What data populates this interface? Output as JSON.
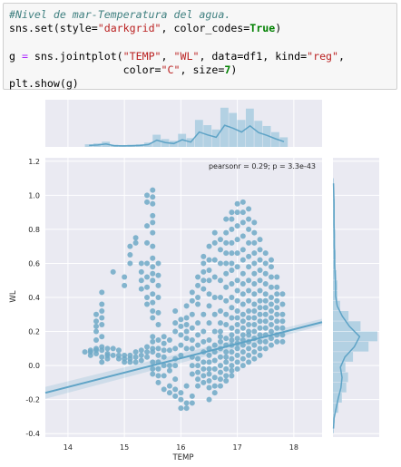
{
  "code_cell": {
    "lines": [
      [
        {
          "t": "#Nivel de mar-Temperatura del agua.",
          "c": "cm"
        }
      ],
      [
        {
          "t": "sns.set(style=",
          "c": ""
        },
        {
          "t": "\"darkgrid\"",
          "c": "st"
        },
        {
          "t": ", color_codes=",
          "c": ""
        },
        {
          "t": "True",
          "c": "kw"
        },
        {
          "t": ")",
          "c": ""
        }
      ],
      [
        {
          "t": "",
          "c": ""
        }
      ],
      [
        {
          "t": "g ",
          "c": ""
        },
        {
          "t": "=",
          "c": "op"
        },
        {
          "t": " sns.jointplot(",
          "c": ""
        },
        {
          "t": "\"TEMP\"",
          "c": "st"
        },
        {
          "t": ", ",
          "c": ""
        },
        {
          "t": "\"WL\"",
          "c": "st"
        },
        {
          "t": ", data=df1, kind=",
          "c": ""
        },
        {
          "t": "\"reg\"",
          "c": "st"
        },
        {
          "t": ",",
          "c": ""
        }
      ],
      [
        {
          "t": "                  color=",
          "c": ""
        },
        {
          "t": "\"C\"",
          "c": "st"
        },
        {
          "t": ", size=",
          "c": ""
        },
        {
          "t": "7",
          "c": "kw"
        },
        {
          "t": ")",
          "c": ""
        }
      ],
      [
        {
          "t": "plt.show(g)",
          "c": ""
        }
      ]
    ]
  },
  "chart_data": {
    "type": "scatter",
    "xlabel": "TEMP",
    "ylabel": "WL",
    "annotation": "pearsonr = 0.29; p = 3.3e-43",
    "xlim": [
      13.6,
      18.5
    ],
    "ylim": [
      -0.42,
      1.22
    ],
    "xticks": [
      14,
      15,
      16,
      17,
      18
    ],
    "yticks": [
      -0.4,
      -0.2,
      0.0,
      0.2,
      0.4,
      0.6,
      0.8,
      1.0,
      1.2
    ],
    "regression": {
      "x": [
        13.6,
        18.5
      ],
      "y": [
        -0.16,
        0.255
      ]
    },
    "columns": [
      {
        "x": 14.3,
        "y": [
          0.08
        ]
      },
      {
        "x": 14.4,
        "y": [
          0.06,
          0.08,
          0.09
        ]
      },
      {
        "x": 14.5,
        "y": [
          0.07,
          0.09,
          0.1,
          0.15,
          0.2,
          0.23,
          0.26,
          0.3
        ]
      },
      {
        "x": 14.6,
        "y": [
          0.02,
          0.05,
          0.09,
          0.11,
          0.17,
          0.24,
          0.28,
          0.32,
          0.36,
          0.43
        ]
      },
      {
        "x": 14.7,
        "y": [
          0.04,
          0.06,
          0.07,
          0.1
        ]
      },
      {
        "x": 14.8,
        "y": [
          0.06,
          0.1,
          0.55
        ]
      },
      {
        "x": 14.9,
        "y": [
          0.04,
          0.06,
          0.09
        ]
      },
      {
        "x": 15.0,
        "y": [
          0.02,
          0.04,
          0.06,
          0.47,
          0.52
        ]
      },
      {
        "x": 15.1,
        "y": [
          0.02,
          0.04,
          0.06,
          0.6,
          0.65,
          0.7
        ]
      },
      {
        "x": 15.2,
        "y": [
          0.02,
          0.05,
          0.08,
          0.72,
          0.75
        ]
      },
      {
        "x": 15.3,
        "y": [
          0.03,
          0.06,
          0.09,
          0.45,
          0.5,
          0.55,
          0.6
        ]
      },
      {
        "x": 15.4,
        "y": [
          0.05,
          0.08,
          0.11,
          0.36,
          0.4,
          0.46,
          0.52,
          0.6,
          0.72,
          0.82,
          0.96,
          1.0
        ]
      },
      {
        "x": 15.5,
        "y": [
          -0.05,
          -0.02,
          0.02,
          0.08,
          0.1,
          0.14,
          0.17,
          0.28,
          0.32,
          0.37,
          0.42,
          0.5,
          0.54,
          0.58,
          0.63,
          0.7,
          0.78,
          0.84,
          0.88,
          0.95,
          0.99,
          1.03
        ]
      },
      {
        "x": 15.6,
        "y": [
          -0.1,
          -0.06,
          -0.02,
          0.02,
          0.06,
          0.1,
          0.15,
          0.24,
          0.31,
          0.4,
          0.47,
          0.53,
          0.6
        ]
      },
      {
        "x": 15.7,
        "y": [
          -0.14,
          -0.06,
          0.0,
          0.05,
          0.09,
          0.13,
          0.17
        ]
      },
      {
        "x": 15.8,
        "y": [
          -0.12,
          -0.16,
          -0.03,
          0.0,
          0.09,
          0.15
        ]
      },
      {
        "x": 15.9,
        "y": [
          -0.18,
          -0.14,
          -0.08,
          0.0,
          0.04,
          0.1,
          0.2,
          0.25,
          0.32
        ]
      },
      {
        "x": 16.0,
        "y": [
          -0.25,
          -0.2,
          -0.16,
          0.06,
          0.12,
          0.18,
          0.23,
          0.27
        ]
      },
      {
        "x": 16.1,
        "y": [
          -0.25,
          -0.22,
          -0.12,
          0.1,
          0.16,
          0.2,
          0.24,
          0.28,
          0.35
        ]
      },
      {
        "x": 16.2,
        "y": [
          -0.22,
          -0.18,
          -0.05,
          0.0,
          0.05,
          0.1,
          0.15,
          0.22,
          0.3,
          0.38,
          0.43
        ]
      },
      {
        "x": 16.3,
        "y": [
          -0.12,
          -0.08,
          -0.04,
          0.0,
          0.04,
          0.12,
          0.18,
          0.25,
          0.36,
          0.4,
          0.47,
          0.52
        ]
      },
      {
        "x": 16.4,
        "y": [
          -0.1,
          -0.06,
          -0.02,
          0.02,
          0.08,
          0.14,
          0.2,
          0.3,
          0.45,
          0.5,
          0.55,
          0.6,
          0.64
        ]
      },
      {
        "x": 16.5,
        "y": [
          -0.2,
          -0.13,
          -0.09,
          -0.05,
          -0.02,
          0.02,
          0.06,
          0.1,
          0.15,
          0.25,
          0.35,
          0.42,
          0.5,
          0.56,
          0.62,
          0.7
        ]
      },
      {
        "x": 16.6,
        "y": [
          -0.16,
          -0.12,
          -0.07,
          -0.02,
          0.03,
          0.08,
          0.12,
          0.2,
          0.3,
          0.4,
          0.52,
          0.62,
          0.72,
          0.78
        ]
      },
      {
        "x": 16.7,
        "y": [
          -0.12,
          -0.08,
          -0.04,
          0.0,
          0.05,
          0.1,
          0.14,
          0.17,
          0.2,
          0.25,
          0.32,
          0.4,
          0.5,
          0.6,
          0.68,
          0.74
        ]
      },
      {
        "x": 16.8,
        "y": [
          -0.09,
          -0.06,
          -0.02,
          0.02,
          0.05,
          0.08,
          0.12,
          0.16,
          0.24,
          0.3,
          0.38,
          0.46,
          0.54,
          0.6,
          0.66,
          0.72,
          0.78,
          0.86
        ]
      },
      {
        "x": 16.9,
        "y": [
          -0.06,
          -0.03,
          0.0,
          0.04,
          0.08,
          0.12,
          0.15,
          0.18,
          0.22,
          0.28,
          0.34,
          0.4,
          0.48,
          0.56,
          0.6,
          0.66,
          0.72,
          0.8,
          0.86,
          0.9
        ]
      },
      {
        "x": 17.0,
        "y": [
          -0.02,
          0.02,
          0.06,
          0.1,
          0.13,
          0.16,
          0.2,
          0.24,
          0.28,
          0.32,
          0.38,
          0.44,
          0.5,
          0.58,
          0.66,
          0.74,
          0.82,
          0.9,
          0.95
        ]
      },
      {
        "x": 17.1,
        "y": [
          0.0,
          0.04,
          0.08,
          0.12,
          0.15,
          0.18,
          0.22,
          0.26,
          0.3,
          0.36,
          0.42,
          0.48,
          0.54,
          0.62,
          0.68,
          0.76,
          0.84,
          0.9,
          0.96
        ]
      },
      {
        "x": 17.2,
        "y": [
          0.02,
          0.06,
          0.1,
          0.14,
          0.18,
          0.2,
          0.24,
          0.28,
          0.32,
          0.38,
          0.44,
          0.5,
          0.58,
          0.64,
          0.72,
          0.8,
          0.86,
          0.92
        ]
      },
      {
        "x": 17.3,
        "y": [
          0.04,
          0.08,
          0.12,
          0.16,
          0.2,
          0.24,
          0.28,
          0.32,
          0.36,
          0.42,
          0.48,
          0.54,
          0.6,
          0.66,
          0.72,
          0.78,
          0.84
        ]
      },
      {
        "x": 17.4,
        "y": [
          0.06,
          0.1,
          0.14,
          0.18,
          0.22,
          0.26,
          0.3,
          0.34,
          0.38,
          0.44,
          0.5,
          0.56,
          0.62,
          0.68,
          0.74
        ]
      },
      {
        "x": 17.5,
        "y": [
          0.1,
          0.14,
          0.18,
          0.22,
          0.26,
          0.3,
          0.34,
          0.38,
          0.42,
          0.48,
          0.54,
          0.6,
          0.66
        ]
      },
      {
        "x": 17.6,
        "y": [
          0.12,
          0.16,
          0.2,
          0.24,
          0.28,
          0.32,
          0.36,
          0.4,
          0.46,
          0.52,
          0.58,
          0.62
        ]
      },
      {
        "x": 17.7,
        "y": [
          0.14,
          0.18,
          0.22,
          0.26,
          0.3,
          0.34,
          0.38,
          0.42,
          0.46,
          0.52
        ]
      },
      {
        "x": 17.8,
        "y": [
          0.14,
          0.18,
          0.22,
          0.26,
          0.3,
          0.36,
          0.42
        ]
      }
    ],
    "marginal_x_hist": {
      "bins": [
        14.3,
        14.45,
        14.6,
        14.75,
        14.9,
        15.05,
        15.2,
        15.35,
        15.5,
        15.65,
        15.8,
        15.95,
        16.1,
        16.25,
        16.4,
        16.55,
        16.7,
        16.85,
        17.0,
        17.15,
        17.3,
        17.45,
        17.6,
        17.75
      ],
      "heights": [
        0.06,
        0.08,
        0.12,
        0.05,
        0.04,
        0.05,
        0.06,
        0.1,
        0.28,
        0.18,
        0.14,
        0.3,
        0.2,
        0.62,
        0.5,
        0.4,
        0.9,
        0.78,
        0.62,
        0.88,
        0.6,
        0.48,
        0.34,
        0.22
      ]
    },
    "marginal_y_hist": {
      "bins": [
        -0.4,
        -0.34,
        -0.28,
        -0.22,
        -0.16,
        -0.1,
        -0.04,
        0.02,
        0.08,
        0.14,
        0.2,
        0.26,
        0.32,
        0.38,
        0.44,
        0.5,
        0.56,
        0.62,
        0.68,
        0.74,
        0.8,
        0.86,
        0.92,
        0.98,
        1.04
      ],
      "heights": [
        0.02,
        0.04,
        0.12,
        0.2,
        0.3,
        0.34,
        0.28,
        0.45,
        0.8,
        1.0,
        0.62,
        0.35,
        0.16,
        0.1,
        0.1,
        0.08,
        0.06,
        0.06,
        0.05,
        0.05,
        0.04,
        0.04,
        0.04,
        0.03,
        0.02
      ]
    }
  },
  "colors": {
    "point": "#6ea9c7",
    "grid_bg": "#eaeaf2",
    "line": "#5ea3c6",
    "hist": "#a9cde0"
  }
}
